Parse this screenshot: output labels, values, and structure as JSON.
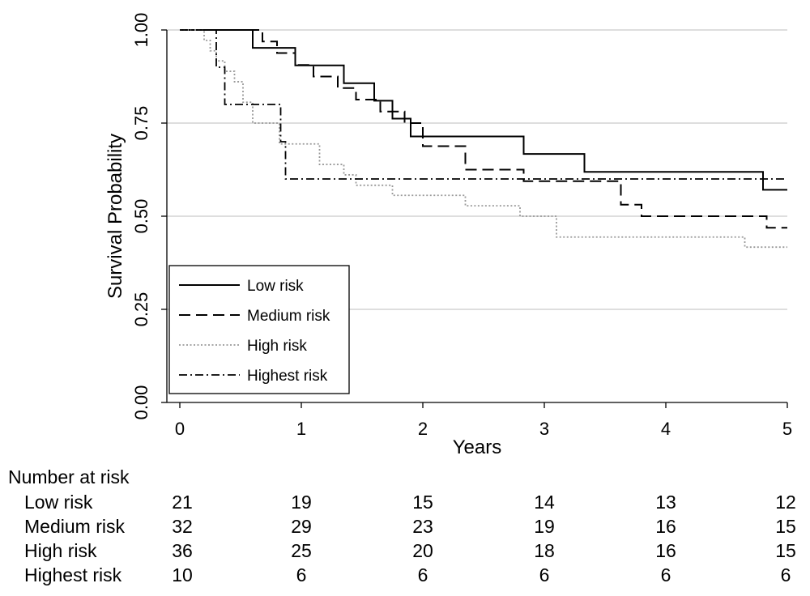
{
  "chart_data": {
    "type": "line",
    "subtype": "step",
    "ylabel": "Survival Probability",
    "xlabel": "Years",
    "xlim": [
      0,
      5
    ],
    "ylim": [
      0,
      1
    ],
    "xticks": [
      "0",
      "1",
      "2",
      "3",
      "4",
      "5"
    ],
    "yticks": [
      "0.00",
      "0.25",
      "0.50",
      "0.75",
      "1.00"
    ],
    "grid": "horizontal",
    "legend_position": "bottom-left",
    "series": [
      {
        "name": "Low risk",
        "line_style": "solid",
        "color": "#000000",
        "x": [
          0,
          0.6,
          0.95,
          1.35,
          1.6,
          1.75,
          1.9,
          2.83,
          3.33,
          4.8,
          5
        ],
        "y": [
          1.0,
          0.952,
          0.905,
          0.857,
          0.81,
          0.762,
          0.714,
          0.667,
          0.619,
          0.571,
          0.571
        ]
      },
      {
        "name": "Medium risk",
        "line_style": "dashed",
        "color": "#000000",
        "x": [
          0,
          0.68,
          0.8,
          0.95,
          1.1,
          1.3,
          1.45,
          1.65,
          1.85,
          2.0,
          2.35,
          2.83,
          3.63,
          3.8,
          4.83,
          5
        ],
        "y": [
          1.0,
          0.969,
          0.938,
          0.906,
          0.875,
          0.844,
          0.813,
          0.781,
          0.75,
          0.688,
          0.625,
          0.594,
          0.531,
          0.5,
          0.469,
          0.469
        ]
      },
      {
        "name": "High risk",
        "line_style": "dotted",
        "color": "#999999",
        "x": [
          0,
          0.2,
          0.25,
          0.3,
          0.37,
          0.45,
          0.52,
          0.6,
          0.82,
          1.15,
          1.35,
          1.45,
          1.75,
          2.35,
          2.8,
          3.1,
          4.65,
          5
        ],
        "y": [
          1.0,
          0.972,
          0.944,
          0.917,
          0.889,
          0.861,
          0.806,
          0.75,
          0.694,
          0.639,
          0.611,
          0.583,
          0.556,
          0.528,
          0.5,
          0.444,
          0.417,
          0.417
        ]
      },
      {
        "name": "Highest risk",
        "line_style": "dash-dot",
        "color": "#000000",
        "x": [
          0,
          0.3,
          0.37,
          0.83,
          0.87,
          5
        ],
        "y": [
          1.0,
          0.9,
          0.8,
          0.7,
          0.6,
          0.6
        ]
      }
    ],
    "risk_table": {
      "title": "Number at risk",
      "rows": [
        {
          "label": "Low risk",
          "values": [
            "21",
            "19",
            "15",
            "14",
            "13",
            "12"
          ]
        },
        {
          "label": "Medium risk",
          "values": [
            "32",
            "29",
            "23",
            "19",
            "16",
            "15"
          ]
        },
        {
          "label": "High risk",
          "values": [
            "36",
            "25",
            "20",
            "18",
            "16",
            "15"
          ]
        },
        {
          "label": "Highest risk",
          "values": [
            "10",
            "6",
            "6",
            "6",
            "6",
            "6"
          ]
        }
      ]
    }
  }
}
